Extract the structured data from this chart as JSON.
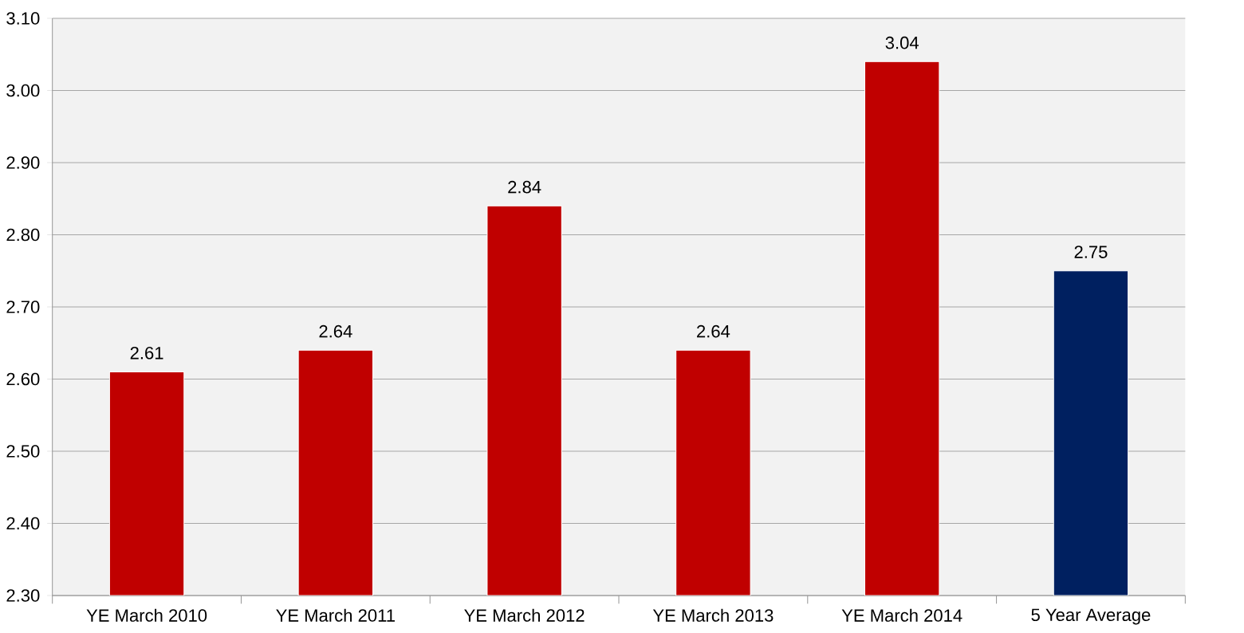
{
  "chart_data": {
    "type": "bar",
    "categories": [
      "YE March 2010",
      "YE March 2011",
      "YE March 2012",
      "YE March 2013",
      "YE March 2014",
      "5 Year Average"
    ],
    "values": [
      2.61,
      2.64,
      2.84,
      2.64,
      3.04,
      2.75
    ],
    "colors": [
      "#c00000",
      "#c00000",
      "#c00000",
      "#c00000",
      "#c00000",
      "#002060"
    ],
    "ylim": [
      2.3,
      3.1
    ],
    "yticks": [
      {
        "value": 2.3,
        "label": "2.30"
      },
      {
        "value": 2.4,
        "label": "2.40"
      },
      {
        "value": 2.5,
        "label": "2.50"
      },
      {
        "value": 2.6,
        "label": "2.60"
      },
      {
        "value": 2.7,
        "label": "2.70"
      },
      {
        "value": 2.8,
        "label": "2.80"
      },
      {
        "value": 2.9,
        "label": "2.90"
      },
      {
        "value": 3.0,
        "label": "3.00"
      },
      {
        "value": 3.1,
        "label": "3.10"
      }
    ],
    "grid": "y",
    "data_labels": true
  }
}
